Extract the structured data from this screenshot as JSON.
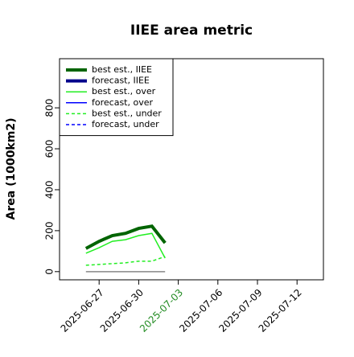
{
  "chart_data": {
    "type": "line",
    "title": "IIEE area metric",
    "ylabel": "Area (1000km2)",
    "x": [
      "2025-06-26",
      "2025-06-27",
      "2025-06-28",
      "2025-06-29",
      "2025-06-30",
      "2025-07-01",
      "2025-07-02"
    ],
    "series": [
      {
        "name": "best est., IIEE",
        "color": "#006400",
        "width": 4,
        "dash": false,
        "values": [
          113,
          148,
          176,
          187,
          211,
          222,
          140
        ]
      },
      {
        "name": "forecast, IIEE",
        "color": "#00008b",
        "width": 4,
        "dash": false,
        "values": [
          null,
          null,
          null,
          null,
          null,
          null,
          null
        ]
      },
      {
        "name": "best est., over",
        "color": "#22ee22",
        "width": 1.5,
        "dash": false,
        "values": [
          90,
          117,
          148,
          156,
          176,
          187,
          66
        ]
      },
      {
        "name": "forecast, over",
        "color": "#0000ff",
        "width": 1.5,
        "dash": false,
        "values": [
          null,
          null,
          null,
          null,
          null,
          null,
          null
        ]
      },
      {
        "name": "best est., under",
        "color": "#22ee22",
        "width": 1.5,
        "dash": true,
        "values": [
          31,
          35,
          39,
          43,
          51,
          51,
          74
        ]
      },
      {
        "name": "forecast, under",
        "color": "#0000ff",
        "width": 1.5,
        "dash": true,
        "values": [
          null,
          null,
          null,
          null,
          null,
          null,
          null
        ]
      },
      {
        "color": "#888888",
        "width": 1.5,
        "dash": false,
        "values": [
          0,
          0,
          0,
          0,
          0,
          0,
          0
        ]
      }
    ],
    "xlim": [
      "2025-06-24",
      "2025-07-14"
    ],
    "xticks": [
      "2025-06-27",
      "2025-06-30",
      "2025-07-03",
      "2025-07-06",
      "2025-07-09",
      "2025-07-12"
    ],
    "highlight_tick": "2025-07-03",
    "highlight_color": "#228b22",
    "ylim": [
      -40,
      1040
    ],
    "yticks": [
      0,
      200,
      400,
      600,
      800
    ],
    "legend": "top-left"
  }
}
